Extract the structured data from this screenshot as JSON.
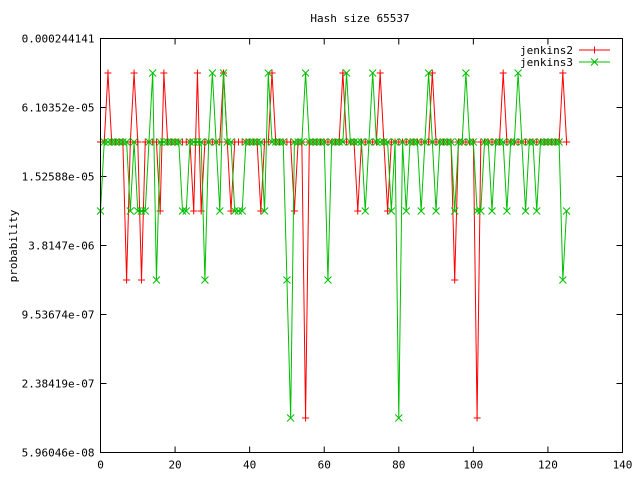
{
  "chart_data": {
    "type": "line",
    "title": "Hash size 65537",
    "xlabel": "",
    "ylabel": "probability",
    "xlim": [
      0,
      140
    ],
    "x_ticks": [
      0,
      20,
      40,
      60,
      80,
      100,
      120,
      140
    ],
    "x_tick_labels": [
      "0",
      "20",
      "40",
      "60",
      "80",
      "100",
      "120",
      "140"
    ],
    "y_scale": "log2",
    "ylim": [
      5.96046e-08,
      0.000244141
    ],
    "y_ticks": [
      0.000244141,
      6.10352e-05,
      1.52588e-05,
      3.8147e-06,
      9.53674e-07,
      2.38419e-07,
      5.96046e-08
    ],
    "y_tick_labels": [
      "0.000244141",
      "6.10352e-05",
      "1.52588e-05",
      "3.8147e-06",
      "9.53674e-07",
      "2.38419e-07",
      "5.96046e-08"
    ],
    "grid": false,
    "legend_position": "top-right",
    "series": [
      {
        "name": "jenkins2",
        "color": "#ff0000",
        "marker": "plus",
        "x": [
          0,
          1,
          2,
          3,
          4,
          5,
          6,
          7,
          8,
          9,
          10,
          11,
          12,
          13,
          14,
          15,
          16,
          17,
          18,
          19,
          20,
          21,
          22,
          23,
          24,
          25,
          26,
          27,
          28,
          29,
          30,
          31,
          32,
          33,
          34,
          35,
          36,
          37,
          38,
          39,
          40,
          41,
          42,
          43,
          44,
          45,
          46,
          47,
          48,
          49,
          50,
          51,
          52,
          53,
          54,
          55,
          56,
          57,
          58,
          59,
          60,
          61,
          62,
          63,
          64,
          65,
          66,
          67,
          68,
          69,
          70,
          71,
          72,
          73,
          74,
          75,
          76,
          77,
          78,
          79,
          80,
          81,
          82,
          83,
          84,
          85,
          86,
          87,
          88,
          89,
          90,
          91,
          92,
          93,
          94,
          95,
          96,
          97,
          98,
          99,
          100,
          101,
          102,
          103,
          104,
          105,
          106,
          107,
          108,
          109,
          110,
          111,
          112,
          113,
          114,
          115,
          116,
          117,
          118,
          119,
          120,
          121,
          122,
          123,
          124,
          125
        ],
        "y": [
          3.05176e-05,
          3.05176e-05,
          0.00012207,
          3.05176e-05,
          3.05176e-05,
          3.05176e-05,
          3.05176e-05,
          1.90735e-06,
          3.05176e-05,
          0.00012207,
          3.05176e-05,
          1.90735e-06,
          3.05176e-05,
          3.05176e-05,
          3.05176e-05,
          3.05176e-05,
          7.62939e-06,
          0.00012207,
          3.05176e-05,
          3.05176e-05,
          3.05176e-05,
          3.05176e-05,
          3.05176e-05,
          3.05176e-05,
          3.05176e-05,
          7.62939e-06,
          0.00012207,
          7.62939e-06,
          3.05176e-05,
          3.05176e-05,
          3.05176e-05,
          3.05176e-05,
          3.05176e-05,
          0.00012207,
          3.05176e-05,
          7.62939e-06,
          3.05176e-05,
          3.05176e-05,
          3.05176e-05,
          3.05176e-05,
          3.05176e-05,
          3.05176e-05,
          3.05176e-05,
          7.62939e-06,
          3.05176e-05,
          3.05176e-05,
          0.00012207,
          3.05176e-05,
          3.05176e-05,
          3.05176e-05,
          3.05176e-05,
          3.05176e-05,
          7.62939e-06,
          3.05176e-05,
          3.05176e-05,
          1.19209e-07,
          3.05176e-05,
          3.05176e-05,
          3.05176e-05,
          3.05176e-05,
          3.05176e-05,
          3.05176e-05,
          3.05176e-05,
          3.05176e-05,
          3.05176e-05,
          0.00012207,
          3.05176e-05,
          3.05176e-05,
          3.05176e-05,
          7.62939e-06,
          3.05176e-05,
          3.05176e-05,
          3.05176e-05,
          3.05176e-05,
          3.05176e-05,
          0.00012207,
          3.05176e-05,
          7.62939e-06,
          3.05176e-05,
          3.05176e-05,
          3.05176e-05,
          3.05176e-05,
          3.05176e-05,
          3.05176e-05,
          3.05176e-05,
          3.05176e-05,
          3.05176e-05,
          3.05176e-05,
          3.05176e-05,
          0.00012207,
          3.05176e-05,
          3.05176e-05,
          3.05176e-05,
          3.05176e-05,
          3.05176e-05,
          1.90735e-06,
          3.05176e-05,
          3.05176e-05,
          3.05176e-05,
          3.05176e-05,
          3.05176e-05,
          1.19209e-07,
          3.05176e-05,
          3.05176e-05,
          3.05176e-05,
          3.05176e-05,
          3.05176e-05,
          3.05176e-05,
          0.00012207,
          3.05176e-05,
          3.05176e-05,
          3.05176e-05,
          3.05176e-05,
          3.05176e-05,
          3.05176e-05,
          3.05176e-05,
          3.05176e-05,
          3.05176e-05,
          3.05176e-05,
          3.05176e-05,
          3.05176e-05,
          3.05176e-05,
          3.05176e-05,
          3.05176e-05,
          0.00012207,
          3.05176e-05
        ]
      },
      {
        "name": "jenkins3",
        "color": "#00c000",
        "marker": "cross",
        "x": [
          0,
          1,
          2,
          3,
          4,
          5,
          6,
          7,
          8,
          9,
          10,
          11,
          12,
          13,
          14,
          15,
          16,
          17,
          18,
          19,
          20,
          21,
          22,
          23,
          24,
          25,
          26,
          27,
          28,
          29,
          30,
          31,
          32,
          33,
          34,
          35,
          36,
          37,
          38,
          39,
          40,
          41,
          42,
          43,
          44,
          45,
          46,
          47,
          48,
          49,
          50,
          51,
          52,
          53,
          54,
          55,
          56,
          57,
          58,
          59,
          60,
          61,
          62,
          63,
          64,
          65,
          66,
          67,
          68,
          69,
          70,
          71,
          72,
          73,
          74,
          75,
          76,
          77,
          78,
          79,
          80,
          81,
          82,
          83,
          84,
          85,
          86,
          87,
          88,
          89,
          90,
          91,
          92,
          93,
          94,
          95,
          96,
          97,
          98,
          99,
          100,
          101,
          102,
          103,
          104,
          105,
          106,
          107,
          108,
          109,
          110,
          111,
          112,
          113,
          114,
          115,
          116,
          117,
          118,
          119,
          120,
          121,
          122,
          123,
          124,
          125
        ],
        "y": [
          7.62939e-06,
          3.05176e-05,
          3.05176e-05,
          3.05176e-05,
          3.05176e-05,
          3.05176e-05,
          3.05176e-05,
          3.05176e-05,
          7.62939e-06,
          3.05176e-05,
          7.62939e-06,
          7.62939e-06,
          7.62939e-06,
          3.05176e-05,
          0.00012207,
          1.90735e-06,
          3.05176e-05,
          3.05176e-05,
          3.05176e-05,
          3.05176e-05,
          3.05176e-05,
          3.05176e-05,
          7.62939e-06,
          7.62939e-06,
          3.05176e-05,
          3.05176e-05,
          3.05176e-05,
          3.05176e-05,
          1.90735e-06,
          3.05176e-05,
          0.00012207,
          3.05176e-05,
          7.62939e-06,
          0.00012207,
          3.05176e-05,
          3.05176e-05,
          7.62939e-06,
          7.62939e-06,
          7.62939e-06,
          3.05176e-05,
          3.05176e-05,
          3.05176e-05,
          3.05176e-05,
          3.05176e-05,
          7.62939e-06,
          0.00012207,
          3.05176e-05,
          3.05176e-05,
          3.05176e-05,
          3.05176e-05,
          1.90735e-06,
          1.19209e-07,
          3.05176e-05,
          3.05176e-05,
          3.05176e-05,
          0.00012207,
          3.05176e-05,
          3.05176e-05,
          3.05176e-05,
          3.05176e-05,
          3.05176e-05,
          1.90735e-06,
          3.05176e-05,
          3.05176e-05,
          3.05176e-05,
          3.05176e-05,
          0.00012207,
          3.05176e-05,
          3.05176e-05,
          3.05176e-05,
          3.05176e-05,
          7.62939e-06,
          3.05176e-05,
          0.00012207,
          3.05176e-05,
          3.05176e-05,
          3.05176e-05,
          3.05176e-05,
          7.62939e-06,
          3.05176e-05,
          1.19209e-07,
          3.05176e-05,
          7.62939e-06,
          3.05176e-05,
          3.05176e-05,
          3.05176e-05,
          7.62939e-06,
          3.05176e-05,
          0.00012207,
          3.05176e-05,
          7.62939e-06,
          3.05176e-05,
          3.05176e-05,
          3.05176e-05,
          3.05176e-05,
          7.62939e-06,
          3.05176e-05,
          3.05176e-05,
          0.00012207,
          3.05176e-05,
          3.05176e-05,
          7.62939e-06,
          7.62939e-06,
          3.05176e-05,
          3.05176e-05,
          7.62939e-06,
          3.05176e-05,
          3.05176e-05,
          3.05176e-05,
          7.62939e-06,
          3.05176e-05,
          3.05176e-05,
          0.00012207,
          3.05176e-05,
          7.62939e-06,
          3.05176e-05,
          3.05176e-05,
          7.62939e-06,
          3.05176e-05,
          3.05176e-05,
          3.05176e-05,
          3.05176e-05,
          3.05176e-05,
          3.05176e-05,
          1.90735e-06,
          7.62939e-06
        ]
      }
    ]
  }
}
